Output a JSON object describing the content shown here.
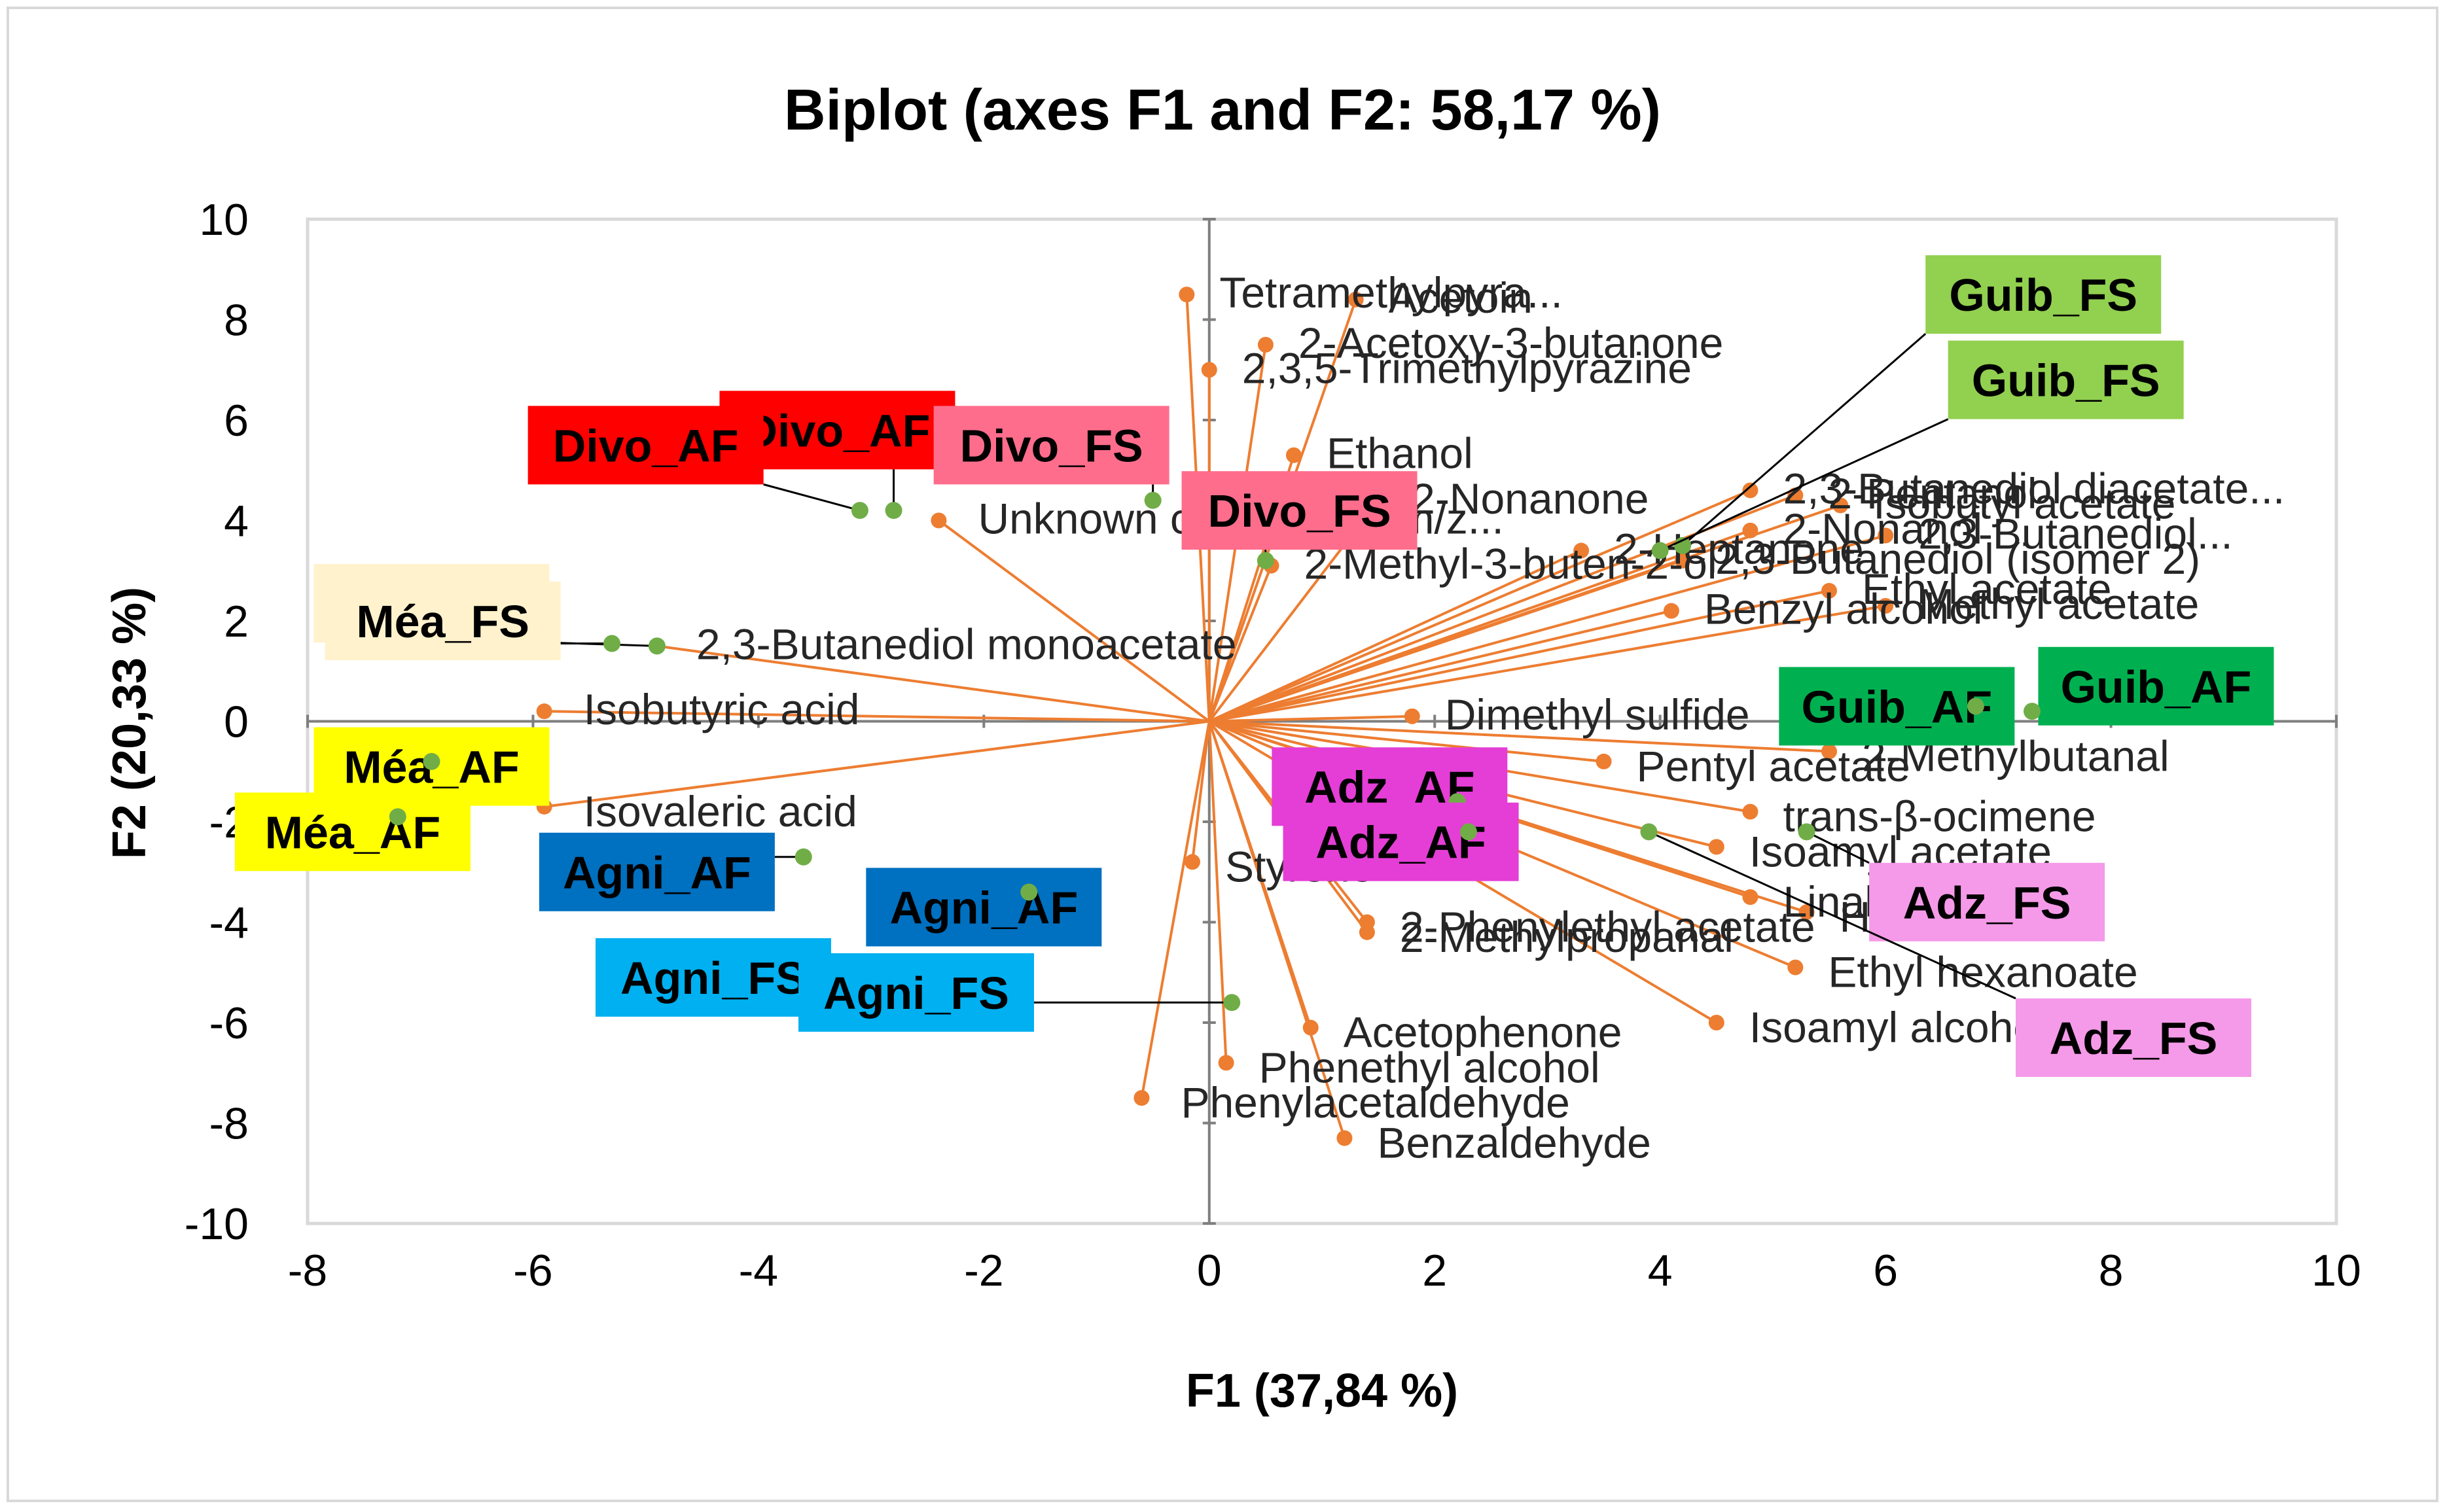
{
  "chart_data": {
    "type": "scatter",
    "subtype": "biplot",
    "title": "Biplot (axes F1 and F2: 58,17 %)",
    "xlabel": "F1 (37,84 %)",
    "ylabel": "F2 (20,33 %)",
    "xlim": [
      -8,
      10
    ],
    "ylim": [
      -10,
      10
    ],
    "xticks": [
      -8,
      -6,
      -4,
      -2,
      0,
      2,
      4,
      6,
      8,
      10
    ],
    "yticks": [
      -10,
      -8,
      -6,
      -4,
      -2,
      0,
      2,
      4,
      6,
      8,
      10
    ],
    "grid": false,
    "colors": {
      "vector": "#ED7D31",
      "observation": "#70AD47",
      "axis_line": "#7F7F7F",
      "frame": "#D9D9D9"
    },
    "variables": [
      {
        "label": "Tetramethylpyra...",
        "x": -0.2,
        "y": 8.5
      },
      {
        "label": "Acetoin",
        "x": 1.3,
        "y": 8.4
      },
      {
        "label": "2-Acetoxy-3-butanone",
        "x": 0.5,
        "y": 7.5
      },
      {
        "label": "2,3,5-Trimethylpyrazine",
        "x": 0.0,
        "y": 7.0
      },
      {
        "label": "Ethanol",
        "x": 0.75,
        "y": 5.3
      },
      {
        "label": "2-Nonanone",
        "x": 1.5,
        "y": 4.4
      },
      {
        "label": "2-Methyl-3-buten-2-ol",
        "x": 0.55,
        "y": 3.1
      },
      {
        "label": "Unknown compound (m/z...",
        "x": -2.4,
        "y": 4.0
      },
      {
        "label": "2,3-Butanediol monoacetate",
        "x": -4.9,
        "y": 1.5
      },
      {
        "label": "Isobutyric acid",
        "x": -5.9,
        "y": 0.2
      },
      {
        "label": "Isovaleric acid",
        "x": -5.9,
        "y": -1.7
      },
      {
        "label": "2,3-Butanediol diacetate...",
        "x": 4.8,
        "y": 4.6
      },
      {
        "label": "2-Pentanol",
        "x": 5.2,
        "y": 4.5
      },
      {
        "label": "Isobutyl acetate",
        "x": 5.6,
        "y": 4.3
      },
      {
        "label": "2-Nonanol",
        "x": 4.8,
        "y": 3.8
      },
      {
        "label": "2,3-Butanediol...",
        "x": 6.0,
        "y": 3.7
      },
      {
        "label": "2-Heptanone",
        "x": 3.3,
        "y": 3.4
      },
      {
        "label": "2,3-Butanediol (isomer 2)",
        "x": 4.2,
        "y": 3.2
      },
      {
        "label": "Ethyl acetate",
        "x": 5.5,
        "y": 2.6
      },
      {
        "label": "Benzyl alcohol",
        "x": 4.1,
        "y": 2.2
      },
      {
        "label": "Methyl acetate",
        "x": 6.0,
        "y": 2.3
      },
      {
        "label": "Dimethyl sulfide",
        "x": 1.8,
        "y": 0.1
      },
      {
        "label": "Pentyl acetate",
        "x": 3.5,
        "y": -0.8
      },
      {
        "label": "2-Methylbutanal",
        "x": 5.5,
        "y": -0.6
      },
      {
        "label": "trans-β-ocimene",
        "x": 4.8,
        "y": -1.8
      },
      {
        "label": "Isoamyl acetate",
        "x": 4.5,
        "y": -2.5
      },
      {
        "label": "Linalool",
        "x": 4.8,
        "y": -3.5
      },
      {
        "label": "Hexyl acetate",
        "x": 5.3,
        "y": -3.8
      },
      {
        "label": "Ethyl hexanoate",
        "x": 5.2,
        "y": -4.9
      },
      {
        "label": "Isoamyl alcohol",
        "x": 4.5,
        "y": -6.0
      },
      {
        "label": "2-Phenylethyl acetate",
        "x": 1.4,
        "y": -4.0
      },
      {
        "label": "2-Methylpropanal",
        "x": 1.4,
        "y": -4.2
      },
      {
        "label": "Styrene",
        "x": -0.15,
        "y": -2.8
      },
      {
        "label": "Acetophenone",
        "x": 0.9,
        "y": -6.1
      },
      {
        "label": "Phenethyl alcohol",
        "x": 0.15,
        "y": -6.8
      },
      {
        "label": "Phenylacetaldehyde",
        "x": -0.6,
        "y": -7.5
      },
      {
        "label": "Benzaldehyde",
        "x": 1.2,
        "y": -8.3
      }
    ],
    "observations": [
      {
        "label": "Divo_AF",
        "x": -2.8,
        "y": 4.2,
        "color": "#FF0000",
        "text_color": "#000000"
      },
      {
        "label": "Divo_AF",
        "x": -3.1,
        "y": 4.2,
        "color": "#FF0000",
        "text_color": "#000000"
      },
      {
        "label": "Divo_FS",
        "x": -0.5,
        "y": 4.4,
        "color": "#FF6D8C",
        "text_color": "#000000"
      },
      {
        "label": "Divo_FS",
        "x": 0.5,
        "y": 3.2,
        "color": "#FF6D8C",
        "text_color": "#000000"
      },
      {
        "label": "Méa_FS",
        "x": -4.9,
        "y": 1.5,
        "color": "#FFF2CC",
        "text_color": "#000000"
      },
      {
        "label": "Méa_FS",
        "x": -5.3,
        "y": 1.55,
        "color": "#FFF2CC",
        "text_color": "#000000"
      },
      {
        "label": "Méa_AF",
        "x": -6.9,
        "y": -0.8,
        "color": "#FFFF00",
        "text_color": "#000000"
      },
      {
        "label": "Méa_AF",
        "x": -7.2,
        "y": -1.9,
        "color": "#FFFF00",
        "text_color": "#000000"
      },
      {
        "label": "Agni_AF",
        "x": -3.6,
        "y": -2.7,
        "color": "#0070C0",
        "text_color": "#000000"
      },
      {
        "label": "Agni_AF",
        "x": -1.6,
        "y": -3.4,
        "color": "#0070C0",
        "text_color": "#000000"
      },
      {
        "label": "Agni_FS",
        "x": -2.7,
        "y": -5.3,
        "color": "#00B0F0",
        "text_color": "#000000"
      },
      {
        "label": "Agni_FS",
        "x": 0.2,
        "y": -5.6,
        "color": "#00B0F0",
        "text_color": "#000000"
      },
      {
        "label": "Guib_FS",
        "x": 4.2,
        "y": 3.5,
        "color": "#92D050",
        "text_color": "#000000"
      },
      {
        "label": "Guib_FS",
        "x": 4.0,
        "y": 3.4,
        "color": "#92D050",
        "text_color": "#000000"
      },
      {
        "label": "Guib_AF",
        "x": 6.8,
        "y": 0.3,
        "color": "#00B050",
        "text_color": "#000000"
      },
      {
        "label": "Guib_AF",
        "x": 7.3,
        "y": 0.2,
        "color": "#00B050",
        "text_color": "#000000"
      },
      {
        "label": "Adz_AF",
        "x": 2.2,
        "y": -1.6,
        "color": "#E53ED6",
        "text_color": "#000000"
      },
      {
        "label": "Adz_AF",
        "x": 2.3,
        "y": -2.2,
        "color": "#E53ED6",
        "text_color": "#000000"
      },
      {
        "label": "Adz_FS",
        "x": 5.3,
        "y": -2.2,
        "color": "#F49AE8",
        "text_color": "#000000"
      },
      {
        "label": "Adz_FS",
        "x": 3.9,
        "y": -2.2,
        "color": "#F49AE8",
        "text_color": "#000000"
      }
    ]
  }
}
